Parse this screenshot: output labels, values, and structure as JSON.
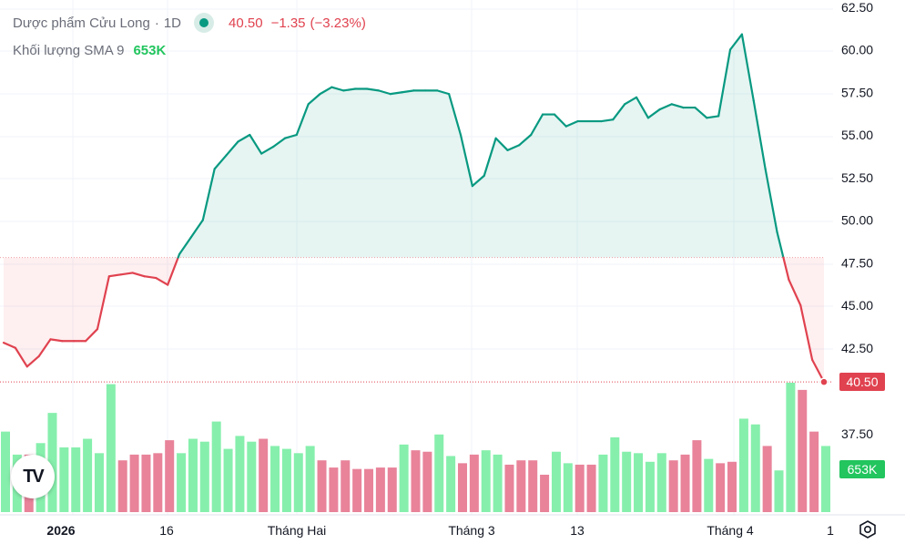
{
  "legend": {
    "symbol": "Dược phẩm Cửu Long",
    "sep": "·",
    "interval": "1D",
    "last": "40.50",
    "change": "−1.35",
    "change_pct": "(−3.23%)",
    "volume_label": "Khối lượng SMA 9",
    "volume_value": "653K"
  },
  "tags": {
    "price": "40.50",
    "volume": "653K"
  },
  "colors": {
    "up_line": "#089981",
    "down_line": "#e0424f",
    "vol_up": "#86efac",
    "vol_down": "#e8839a"
  },
  "chart_data": {
    "type": "area",
    "baseline": 47.8,
    "y_ticks": [
      "62.50",
      "60.00",
      "57.50",
      "55.00",
      "52.50",
      "50.00",
      "47.50",
      "45.00",
      "42.50",
      "40.50",
      "37.50"
    ],
    "x_labels": [
      "2026",
      "16",
      "Tháng Hai",
      "Tháng 3",
      "13",
      "Tháng 4",
      "1"
    ],
    "ylim": [
      35.2,
      62.5
    ],
    "price": [
      42.8,
      42.5,
      41.4,
      42.0,
      43.0,
      42.9,
      42.9,
      42.9,
      43.6,
      46.7,
      46.8,
      46.9,
      46.7,
      46.6,
      46.2,
      48.0,
      49.0,
      50.0,
      53.0,
      53.8,
      54.6,
      55.0,
      53.9,
      54.3,
      54.8,
      55.0,
      56.8,
      57.4,
      57.8,
      57.6,
      57.7,
      57.7,
      57.6,
      57.4,
      57.5,
      57.6,
      57.6,
      57.6,
      57.4,
      55.0,
      52.0,
      52.6,
      54.8,
      54.1,
      54.4,
      55.0,
      56.2,
      56.2,
      55.5,
      55.8,
      55.8,
      55.8,
      55.9,
      56.8,
      57.2,
      56.0,
      56.5,
      56.8,
      56.6,
      56.6,
      56.0,
      56.1,
      60.0,
      60.9,
      57.0,
      53.0,
      49.3,
      46.5,
      45.0,
      41.8,
      40.5
    ],
    "volume": [
      5.6,
      4.0,
      4.0,
      4.8,
      6.9,
      4.5,
      4.5,
      5.1,
      4.1,
      8.9,
      3.6,
      4.0,
      4.0,
      4.1,
      5.0,
      4.1,
      5.1,
      4.9,
      6.3,
      4.4,
      5.3,
      4.9,
      5.1,
      4.6,
      4.4,
      4.1,
      4.6,
      3.6,
      3.1,
      3.6,
      3.0,
      3.0,
      3.1,
      3.1,
      4.7,
      4.3,
      4.2,
      5.4,
      3.9,
      3.4,
      4.0,
      4.3,
      4.0,
      3.3,
      3.6,
      3.6,
      2.6,
      4.2,
      3.4,
      3.3,
      3.3,
      4.0,
      5.2,
      4.2,
      4.1,
      3.5,
      4.1,
      3.6,
      4.0,
      5.0,
      3.7,
      3.4,
      3.5,
      6.5,
      6.1,
      4.6,
      2.9,
      9.0,
      8.5,
      5.6,
      4.6
    ],
    "volume_up": [
      true,
      true,
      false,
      true,
      true,
      true,
      true,
      true,
      true,
      true,
      false,
      false,
      false,
      false,
      false,
      true,
      true,
      true,
      true,
      true,
      true,
      true,
      false,
      true,
      true,
      true,
      true,
      false,
      false,
      false,
      false,
      false,
      false,
      false,
      true,
      false,
      false,
      true,
      true,
      false,
      false,
      true,
      true,
      false,
      false,
      false,
      false,
      true,
      true,
      false,
      false,
      true,
      true,
      true,
      true,
      true,
      true,
      false,
      false,
      false,
      true,
      false,
      false,
      true,
      true,
      false,
      true,
      true,
      false,
      false,
      true
    ]
  }
}
